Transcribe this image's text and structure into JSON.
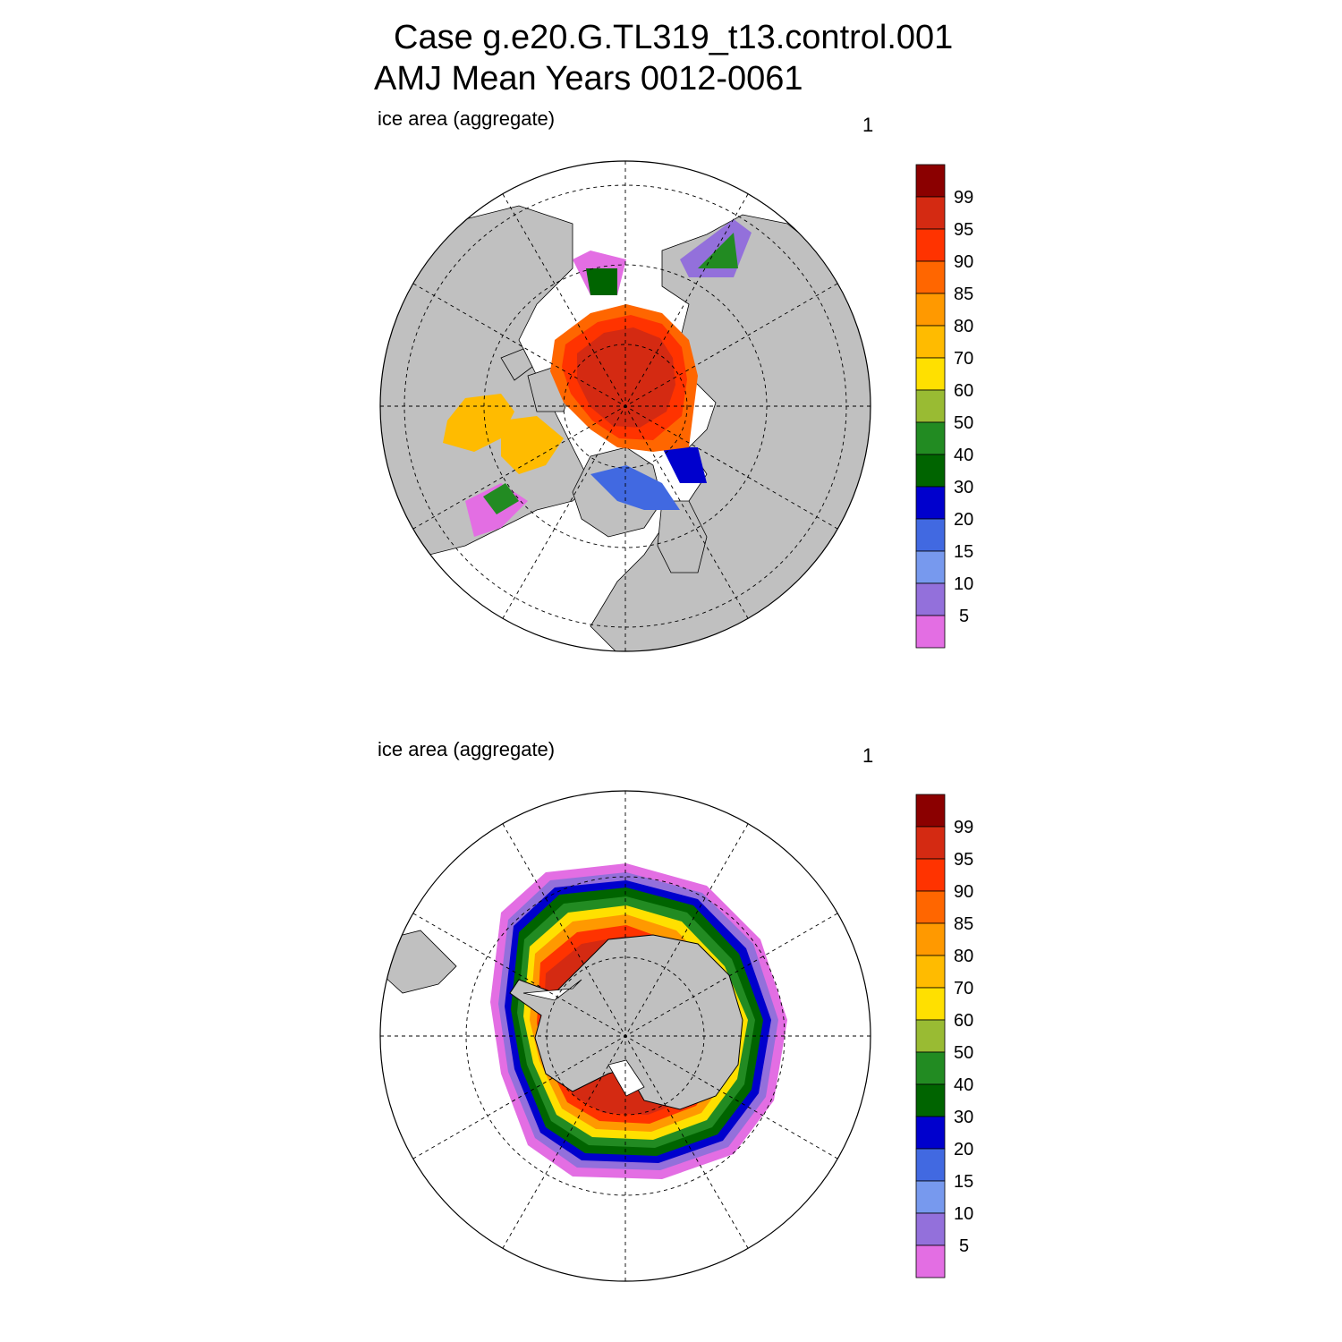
{
  "title": {
    "line1": "Case g.e20.G.TL319_t13.control.001",
    "line2": "AMJ Mean   Years 0012-0061"
  },
  "panels": [
    {
      "id": "north",
      "label": "ice area  (aggregate)",
      "unit": "1"
    },
    {
      "id": "south",
      "label": "ice area  (aggregate)",
      "unit": "1"
    }
  ],
  "colorbar": {
    "labels": [
      "99",
      "95",
      "90",
      "85",
      "80",
      "70",
      "60",
      "50",
      "40",
      "30",
      "20",
      "15",
      "10",
      "5"
    ],
    "colors": [
      "#8b0000",
      "#d42a12",
      "#ff3300",
      "#ff6600",
      "#ff9900",
      "#ffbb00",
      "#ffe000",
      "#99bb33",
      "#228b22",
      "#006400",
      "#0000cd",
      "#4169e1",
      "#7799ee",
      "#9370db",
      "#e36ee3"
    ]
  },
  "map_colors": {
    "land": "#c0c0c0",
    "ocean": "#ffffff",
    "coast": "#000000"
  }
}
